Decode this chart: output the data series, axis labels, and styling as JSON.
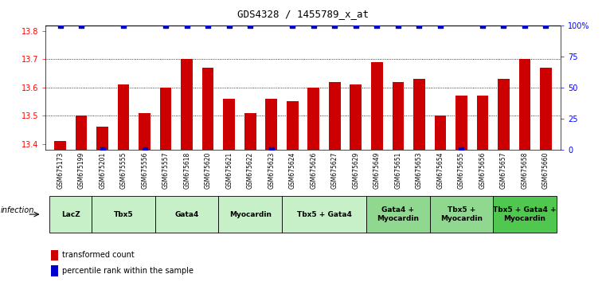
{
  "title": "GDS4328 / 1455789_x_at",
  "samples": [
    "GSM675173",
    "GSM675199",
    "GSM675201",
    "GSM675555",
    "GSM675556",
    "GSM675557",
    "GSM675618",
    "GSM675620",
    "GSM675621",
    "GSM675622",
    "GSM675623",
    "GSM675624",
    "GSM675626",
    "GSM675627",
    "GSM675629",
    "GSM675649",
    "GSM675651",
    "GSM675653",
    "GSM675654",
    "GSM675655",
    "GSM675656",
    "GSM675657",
    "GSM675658",
    "GSM675660"
  ],
  "bar_values": [
    13.41,
    13.5,
    13.46,
    13.61,
    13.51,
    13.6,
    13.7,
    13.67,
    13.56,
    13.51,
    13.56,
    13.55,
    13.6,
    13.62,
    13.61,
    13.69,
    13.62,
    13.63,
    13.5,
    13.57,
    13.57,
    13.63,
    13.7,
    13.67
  ],
  "percentile_values": [
    100,
    100,
    0,
    100,
    0,
    100,
    100,
    100,
    100,
    100,
    0,
    100,
    100,
    100,
    100,
    100,
    100,
    100,
    100,
    0,
    100,
    100,
    100,
    100
  ],
  "ylim_left": [
    13.38,
    13.82
  ],
  "ylim_right": [
    0,
    100
  ],
  "yticks_left": [
    13.4,
    13.5,
    13.6,
    13.7,
    13.8
  ],
  "yticks_right": [
    0,
    25,
    50,
    75,
    100
  ],
  "bar_color": "#cc0000",
  "dot_color": "#0000cc",
  "bg_color": "#ffffff",
  "groups": [
    {
      "label": "LacZ",
      "start": 0,
      "end": 2,
      "color": "#c8f0c8"
    },
    {
      "label": "Tbx5",
      "start": 2,
      "end": 5,
      "color": "#c8f0c8"
    },
    {
      "label": "Gata4",
      "start": 5,
      "end": 8,
      "color": "#c8f0c8"
    },
    {
      "label": "Myocardin",
      "start": 8,
      "end": 11,
      "color": "#c8f0c8"
    },
    {
      "label": "Tbx5 + Gata4",
      "start": 11,
      "end": 15,
      "color": "#c8f0c8"
    },
    {
      "label": "Gata4 +\nMyocardin",
      "start": 15,
      "end": 18,
      "color": "#90d890"
    },
    {
      "label": "Tbx5 +\nMyocardin",
      "start": 18,
      "end": 21,
      "color": "#90d890"
    },
    {
      "label": "Tbx5 + Gata4 +\nMyocardin",
      "start": 21,
      "end": 24,
      "color": "#50c850"
    }
  ],
  "infection_label": "infection",
  "legend_items": [
    {
      "color": "#cc0000",
      "label": "transformed count"
    },
    {
      "color": "#0000cc",
      "label": "percentile rank within the sample"
    }
  ]
}
